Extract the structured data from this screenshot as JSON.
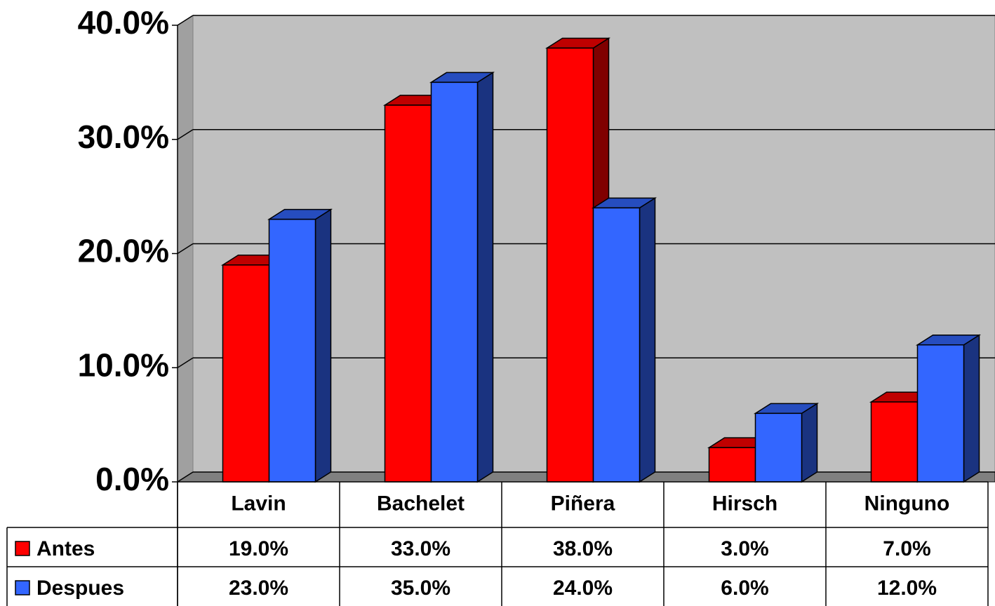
{
  "chart_data": {
    "type": "bar3d",
    "categories": [
      "Lavin",
      "Bachelet",
      "Piñera",
      "Hirsch",
      "Ninguno"
    ],
    "series": [
      {
        "name": "Antes",
        "color": "#ff0000",
        "values": [
          19,
          33,
          38,
          3,
          7
        ],
        "value_labels": [
          "19.0%",
          "33.0%",
          "38.0%",
          "3.0%",
          "7.0%"
        ]
      },
      {
        "name": "Despues",
        "color": "#3366ff",
        "values": [
          23,
          35,
          24,
          6,
          12
        ],
        "value_labels": [
          "23.0%",
          "35.0%",
          "24.0%",
          "6.0%",
          "12.0%"
        ]
      }
    ],
    "ylim": [
      0,
      40
    ],
    "yticks": [
      {
        "value": 0,
        "label": "0.0%"
      },
      {
        "value": 10,
        "label": "10.0%"
      },
      {
        "value": 20,
        "label": "20.0%"
      },
      {
        "value": 30,
        "label": "30.0%"
      },
      {
        "value": 40,
        "label": "40.0%"
      }
    ],
    "grid": true
  }
}
